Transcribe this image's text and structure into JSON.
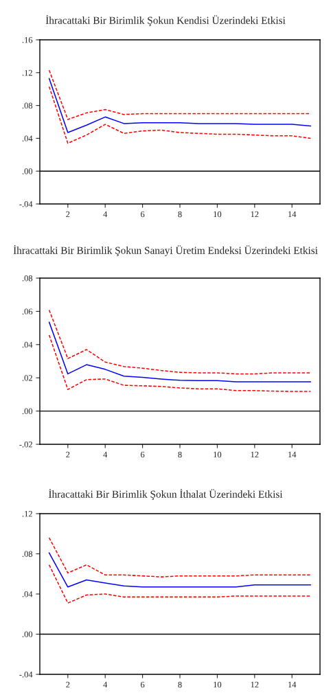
{
  "chart_data": [
    {
      "type": "line",
      "title": "İhracattaki Bir Birimlik Şokun Kendisi Üzerindeki Etkisi",
      "x": [
        1,
        2,
        3,
        4,
        5,
        6,
        7,
        8,
        9,
        10,
        11,
        12,
        13,
        14,
        15
      ],
      "xlim": [
        0.5,
        15.5
      ],
      "xticks": [
        2,
        4,
        6,
        8,
        10,
        12,
        14
      ],
      "ylim": [
        -0.04,
        0.16
      ],
      "yticks": [
        {
          "value": -0.04,
          "label": "-.04"
        },
        {
          "value": 0.0,
          "label": ".00"
        },
        {
          "value": 0.04,
          "label": ".04"
        },
        {
          "value": 0.08,
          "label": ".08"
        },
        {
          "value": 0.12,
          "label": ".12"
        },
        {
          "value": 0.16,
          "label": ".16"
        }
      ],
      "grid": false,
      "legend": false,
      "series": [
        {
          "color": "#0000ff",
          "line_style": "solid",
          "values": [
            0.113,
            0.047,
            0.056,
            0.066,
            0.058,
            0.059,
            0.059,
            0.059,
            0.058,
            0.058,
            0.058,
            0.057,
            0.057,
            0.057,
            0.055
          ]
        },
        {
          "color": "#ff0000",
          "line_style": "dashed",
          "values": [
            0.123,
            0.063,
            0.071,
            0.075,
            0.069,
            0.07,
            0.07,
            0.07,
            0.07,
            0.07,
            0.07,
            0.07,
            0.07,
            0.07,
            0.07
          ]
        },
        {
          "color": "#ff0000",
          "line_style": "dashed",
          "values": [
            0.103,
            0.034,
            0.044,
            0.057,
            0.046,
            0.049,
            0.05,
            0.047,
            0.046,
            0.045,
            0.045,
            0.044,
            0.043,
            0.043,
            0.04
          ]
        }
      ],
      "ref_lines": [
        {
          "axis": "y",
          "value": 0.0,
          "color": "#000000",
          "line_style": "solid"
        }
      ]
    },
    {
      "type": "line",
      "title": "İhracattaki Bir Birimlik Şokun Sanayi Üretim Endeksi Üzerindeki Etkisi",
      "x": [
        1,
        2,
        3,
        4,
        5,
        6,
        7,
        8,
        9,
        10,
        11,
        12,
        13,
        14,
        15
      ],
      "xlim": [
        0.5,
        15.5
      ],
      "xticks": [
        2,
        4,
        6,
        8,
        10,
        12,
        14
      ],
      "ylim": [
        -0.02,
        0.08
      ],
      "yticks": [
        {
          "value": -0.02,
          "label": "-.02"
        },
        {
          "value": 0.0,
          "label": ".00"
        },
        {
          "value": 0.02,
          "label": ".02"
        },
        {
          "value": 0.04,
          "label": ".04"
        },
        {
          "value": 0.06,
          "label": ".06"
        },
        {
          "value": 0.08,
          "label": ".08"
        }
      ],
      "grid": false,
      "legend": false,
      "series": [
        {
          "color": "#0000ff",
          "line_style": "solid",
          "values": [
            0.0535,
            0.0224,
            0.0279,
            0.0251,
            0.021,
            0.0203,
            0.0193,
            0.0185,
            0.0183,
            0.0183,
            0.0176,
            0.0176,
            0.0176,
            0.0176,
            0.0176
          ]
        },
        {
          "color": "#ff0000",
          "line_style": "dashed",
          "values": [
            0.0608,
            0.0316,
            0.037,
            0.0295,
            0.0268,
            0.0258,
            0.0244,
            0.0233,
            0.023,
            0.023,
            0.0224,
            0.0224,
            0.023,
            0.023,
            0.023
          ]
        },
        {
          "color": "#ff0000",
          "line_style": "dashed",
          "values": [
            0.0457,
            0.013,
            0.0189,
            0.0193,
            0.0155,
            0.0152,
            0.0148,
            0.0139,
            0.0134,
            0.0134,
            0.0123,
            0.0123,
            0.012,
            0.0118,
            0.0118
          ]
        }
      ],
      "ref_lines": [
        {
          "axis": "y",
          "value": 0.0,
          "color": "#000000",
          "line_style": "solid"
        }
      ]
    },
    {
      "type": "line",
      "title": "İhracattaki Bir Birimlik Şokun İthalat Üzerindeki Etkisi",
      "x": [
        1,
        2,
        3,
        4,
        5,
        6,
        7,
        8,
        9,
        10,
        11,
        12,
        13,
        14,
        15
      ],
      "xlim": [
        0.5,
        15.5
      ],
      "xticks": [
        2,
        4,
        6,
        8,
        10,
        12,
        14
      ],
      "ylim": [
        -0.04,
        0.12
      ],
      "yticks": [
        {
          "value": -0.04,
          "label": "-.04"
        },
        {
          "value": 0.0,
          "label": ".00"
        },
        {
          "value": 0.04,
          "label": ".04"
        },
        {
          "value": 0.08,
          "label": ".08"
        },
        {
          "value": 0.12,
          "label": ".12"
        }
      ],
      "grid": false,
      "legend": false,
      "series": [
        {
          "color": "#0000ff",
          "line_style": "solid",
          "values": [
            0.081,
            0.047,
            0.054,
            0.051,
            0.048,
            0.047,
            0.047,
            0.047,
            0.047,
            0.047,
            0.047,
            0.049,
            0.049,
            0.049,
            0.049
          ]
        },
        {
          "color": "#ff0000",
          "line_style": "dashed",
          "values": [
            0.096,
            0.061,
            0.069,
            0.059,
            0.059,
            0.058,
            0.057,
            0.058,
            0.058,
            0.058,
            0.058,
            0.059,
            0.059,
            0.059,
            0.059
          ]
        },
        {
          "color": "#ff0000",
          "line_style": "dashed",
          "values": [
            0.069,
            0.031,
            0.039,
            0.04,
            0.037,
            0.037,
            0.037,
            0.037,
            0.037,
            0.037,
            0.038,
            0.038,
            0.038,
            0.038,
            0.038
          ]
        }
      ],
      "ref_lines": [
        {
          "axis": "y",
          "value": 0.0,
          "color": "#000000",
          "line_style": "solid"
        }
      ]
    }
  ]
}
